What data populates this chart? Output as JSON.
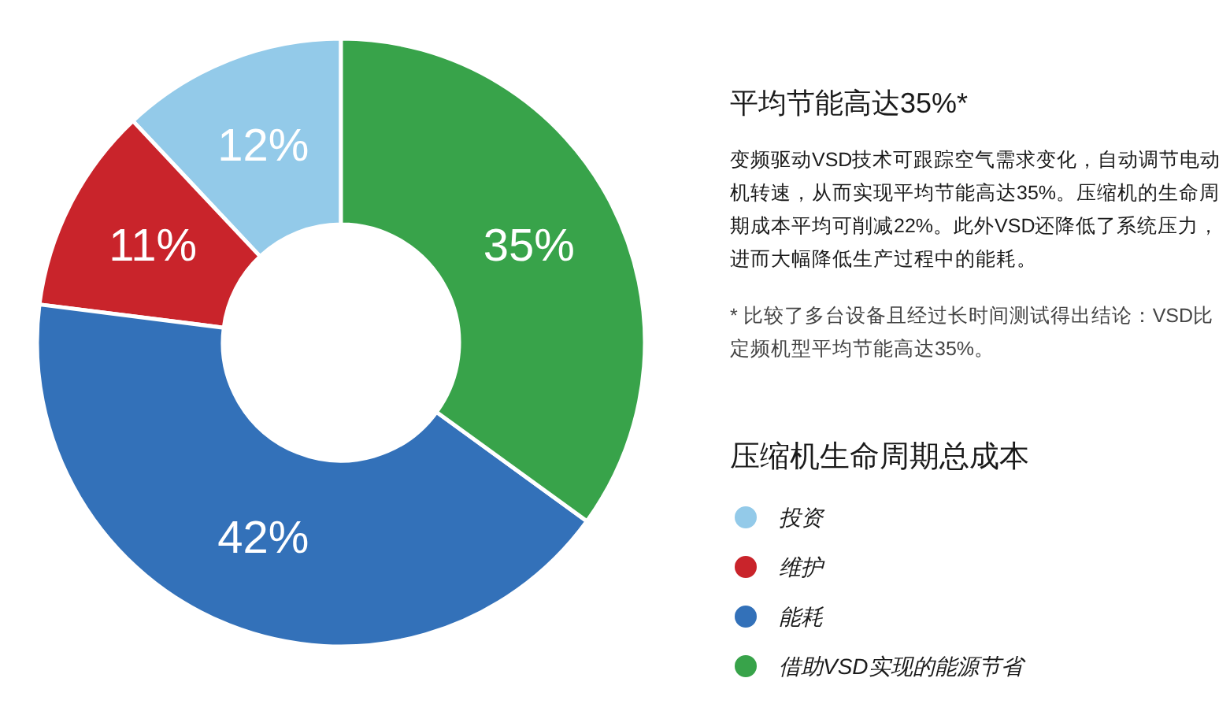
{
  "chart_data": {
    "type": "donut",
    "categories": [
      "投资",
      "维护",
      "能耗",
      "借助VSD实现的能源节省"
    ],
    "values": [
      12,
      11,
      42,
      35
    ],
    "colors": [
      "#93cae9",
      "#c9242b",
      "#3371b9",
      "#38a34a"
    ],
    "value_labels": [
      "12%",
      "11%",
      "42%",
      "35%"
    ],
    "legend": "right",
    "legend_title": "压缩机生命周期总成本",
    "annotations": [
      "平均节能高达35%*",
      "变频驱动VSD技术可跟踪空气需求变化，自动调节电动机转速，从而实现平均节能高达35%。压缩机的生命周期成本平均可削减22%。此外VSD还降低了系统压力，进而大幅降低生产过程中的能耗。",
      "* 比较了多台设备且经过长时间测试得出结论：VSD比定频机型平均节能高达35%。"
    ]
  }
}
